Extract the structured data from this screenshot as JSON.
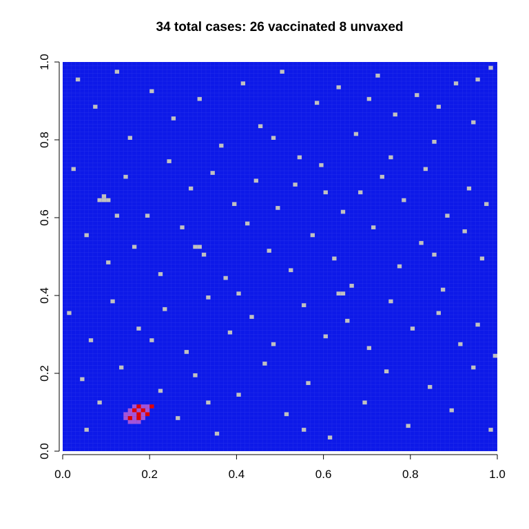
{
  "chart_data": {
    "type": "heatmap",
    "title": "34 total cases: 26 vaccinated 8 unvaxed",
    "xlim": [
      0,
      1
    ],
    "ylim": [
      0,
      1
    ],
    "xticks": [
      {
        "value": 0,
        "label": "0.0"
      },
      0.2,
      0.4,
      0.6,
      0.8,
      {
        "value": 1,
        "label": "1.0"
      }
    ],
    "yticks": [
      {
        "value": 0,
        "label": "0.0"
      },
      0.2,
      0.4,
      0.6,
      0.8,
      {
        "value": 1,
        "label": "1.0"
      }
    ],
    "cell_size": 0.01,
    "state_colors": [
      "#0d19e8",
      "#c0c0c0",
      "#a453d8",
      "#e00000"
    ],
    "cells": [
      [
        0.03,
        0.95,
        1
      ],
      [
        0.07,
        0.88,
        1
      ],
      [
        0.12,
        0.97,
        1
      ],
      [
        0.15,
        0.8,
        1
      ],
      [
        0.2,
        0.92,
        1
      ],
      [
        0.25,
        0.85,
        1
      ],
      [
        0.31,
        0.9,
        1
      ],
      [
        0.36,
        0.78,
        1
      ],
      [
        0.41,
        0.94,
        1
      ],
      [
        0.45,
        0.83,
        1
      ],
      [
        0.5,
        0.97,
        1
      ],
      [
        0.54,
        0.75,
        1
      ],
      [
        0.58,
        0.89,
        1
      ],
      [
        0.63,
        0.93,
        1
      ],
      [
        0.67,
        0.81,
        1
      ],
      [
        0.72,
        0.96,
        1
      ],
      [
        0.76,
        0.86,
        1
      ],
      [
        0.81,
        0.91,
        1
      ],
      [
        0.85,
        0.79,
        1
      ],
      [
        0.9,
        0.94,
        1
      ],
      [
        0.94,
        0.84,
        1
      ],
      [
        0.98,
        0.98,
        1
      ],
      [
        0.02,
        0.72,
        1
      ],
      [
        0.09,
        0.65,
        1
      ],
      [
        0.14,
        0.7,
        1
      ],
      [
        0.19,
        0.6,
        1
      ],
      [
        0.24,
        0.74,
        1
      ],
      [
        0.29,
        0.67,
        1
      ],
      [
        0.34,
        0.71,
        1
      ],
      [
        0.39,
        0.63,
        1
      ],
      [
        0.44,
        0.69,
        1
      ],
      [
        0.49,
        0.62,
        1
      ],
      [
        0.53,
        0.68,
        1
      ],
      [
        0.59,
        0.73,
        1
      ],
      [
        0.64,
        0.61,
        1
      ],
      [
        0.68,
        0.66,
        1
      ],
      [
        0.73,
        0.7,
        1
      ],
      [
        0.78,
        0.64,
        1
      ],
      [
        0.83,
        0.72,
        1
      ],
      [
        0.88,
        0.6,
        1
      ],
      [
        0.93,
        0.67,
        1
      ],
      [
        0.97,
        0.63,
        1
      ],
      [
        0.05,
        0.55,
        1
      ],
      [
        0.1,
        0.48,
        1
      ],
      [
        0.16,
        0.52,
        1
      ],
      [
        0.22,
        0.45,
        1
      ],
      [
        0.27,
        0.57,
        1
      ],
      [
        0.32,
        0.5,
        1
      ],
      [
        0.37,
        0.44,
        1
      ],
      [
        0.42,
        0.58,
        1
      ],
      [
        0.47,
        0.51,
        1
      ],
      [
        0.52,
        0.46,
        1
      ],
      [
        0.57,
        0.55,
        1
      ],
      [
        0.62,
        0.49,
        1
      ],
      [
        0.66,
        0.42,
        1
      ],
      [
        0.71,
        0.57,
        1
      ],
      [
        0.77,
        0.47,
        1
      ],
      [
        0.82,
        0.53,
        1
      ],
      [
        0.87,
        0.41,
        1
      ],
      [
        0.92,
        0.56,
        1
      ],
      [
        0.96,
        0.49,
        1
      ],
      [
        0.01,
        0.35,
        1
      ],
      [
        0.06,
        0.28,
        1
      ],
      [
        0.11,
        0.38,
        1
      ],
      [
        0.17,
        0.31,
        1
      ],
      [
        0.23,
        0.36,
        1
      ],
      [
        0.28,
        0.25,
        1
      ],
      [
        0.33,
        0.39,
        1
      ],
      [
        0.38,
        0.3,
        1
      ],
      [
        0.43,
        0.34,
        1
      ],
      [
        0.48,
        0.27,
        1
      ],
      [
        0.55,
        0.37,
        1
      ],
      [
        0.6,
        0.29,
        1
      ],
      [
        0.65,
        0.33,
        1
      ],
      [
        0.7,
        0.26,
        1
      ],
      [
        0.75,
        0.38,
        1
      ],
      [
        0.8,
        0.31,
        1
      ],
      [
        0.86,
        0.35,
        1
      ],
      [
        0.91,
        0.27,
        1
      ],
      [
        0.95,
        0.32,
        1
      ],
      [
        0.99,
        0.24,
        1
      ],
      [
        0.04,
        0.18,
        1
      ],
      [
        0.08,
        0.12,
        1
      ],
      [
        0.13,
        0.21,
        1
      ],
      [
        0.22,
        0.15,
        1
      ],
      [
        0.26,
        0.08,
        1
      ],
      [
        0.3,
        0.19,
        1
      ],
      [
        0.35,
        0.04,
        1
      ],
      [
        0.4,
        0.14,
        1
      ],
      [
        0.46,
        0.22,
        1
      ],
      [
        0.51,
        0.09,
        1
      ],
      [
        0.56,
        0.17,
        1
      ],
      [
        0.61,
        0.03,
        1
      ],
      [
        0.69,
        0.12,
        1
      ],
      [
        0.74,
        0.2,
        1
      ],
      [
        0.79,
        0.06,
        1
      ],
      [
        0.84,
        0.16,
        1
      ],
      [
        0.89,
        0.1,
        1
      ],
      [
        0.94,
        0.21,
        1
      ],
      [
        0.98,
        0.05,
        1
      ],
      [
        0.12,
        0.6,
        1
      ],
      [
        0.48,
        0.8,
        1
      ],
      [
        0.7,
        0.9,
        1
      ],
      [
        0.33,
        0.12,
        1
      ],
      [
        0.6,
        0.66,
        1
      ],
      [
        0.85,
        0.5,
        1
      ],
      [
        0.2,
        0.28,
        1
      ],
      [
        0.4,
        0.4,
        1
      ],
      [
        0.75,
        0.75,
        1
      ],
      [
        0.55,
        0.05,
        1
      ],
      [
        0.05,
        0.05,
        1
      ],
      [
        0.95,
        0.95,
        1
      ],
      [
        0.08,
        0.64,
        1
      ],
      [
        0.09,
        0.64,
        1
      ],
      [
        0.1,
        0.64,
        1
      ],
      [
        0.3,
        0.52,
        1
      ],
      [
        0.31,
        0.52,
        1
      ],
      [
        0.63,
        0.4,
        1
      ],
      [
        0.64,
        0.4,
        1
      ],
      [
        0.86,
        0.88,
        1
      ],
      [
        0.15,
        0.1,
        2
      ],
      [
        0.15,
        0.09,
        2
      ],
      [
        0.14,
        0.09,
        2
      ],
      [
        0.16,
        0.09,
        2
      ],
      [
        0.16,
        0.08,
        2
      ],
      [
        0.14,
        0.08,
        2
      ],
      [
        0.16,
        0.07,
        2
      ],
      [
        0.17,
        0.07,
        2
      ],
      [
        0.15,
        0.07,
        2
      ],
      [
        0.18,
        0.11,
        2
      ],
      [
        0.19,
        0.1,
        2
      ],
      [
        0.18,
        0.08,
        2
      ],
      [
        0.17,
        0.1,
        2
      ],
      [
        0.16,
        0.11,
        2
      ],
      [
        0.19,
        0.11,
        2
      ],
      [
        0.18,
        0.09,
        2
      ],
      [
        0.17,
        0.11,
        3
      ],
      [
        0.2,
        0.11,
        3
      ],
      [
        0.16,
        0.1,
        3
      ],
      [
        0.18,
        0.1,
        3
      ],
      [
        0.15,
        0.08,
        3
      ],
      [
        0.17,
        0.08,
        3
      ],
      [
        0.19,
        0.09,
        3
      ],
      [
        0.17,
        0.09,
        3
      ]
    ]
  }
}
